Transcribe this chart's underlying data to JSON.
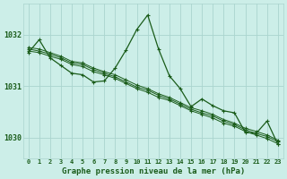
{
  "title": "Graphe pression niveau de la mer (hPa)",
  "bg_color": "#cceee8",
  "grid_color": "#aad4ce",
  "line_color": "#1a5c1a",
  "x_labels": [
    "0",
    "1",
    "2",
    "3",
    "4",
    "5",
    "6",
    "7",
    "8",
    "9",
    "10",
    "11",
    "12",
    "13",
    "14",
    "15",
    "16",
    "17",
    "18",
    "19",
    "20",
    "21",
    "22",
    "23"
  ],
  "ylim": [
    1029.6,
    1032.6
  ],
  "yticks": [
    1030,
    1031,
    1032
  ],
  "series_main": [
    1031.65,
    1031.9,
    1031.55,
    1031.4,
    1031.25,
    1031.22,
    1031.08,
    1031.1,
    1031.35,
    1031.7,
    1032.1,
    1032.38,
    1031.72,
    1031.2,
    1030.95,
    1030.6,
    1030.75,
    1030.62,
    1030.52,
    1030.48,
    1030.1,
    1030.08,
    1030.32,
    1029.87
  ],
  "series_lin1": [
    1031.68,
    1031.65,
    1031.58,
    1031.52,
    1031.42,
    1031.38,
    1031.28,
    1031.22,
    1031.15,
    1031.05,
    1030.95,
    1030.88,
    1030.78,
    1030.72,
    1030.62,
    1030.52,
    1030.45,
    1030.38,
    1030.28,
    1030.22,
    1030.12,
    1030.05,
    1029.98,
    1029.88
  ],
  "series_lin2": [
    1031.72,
    1031.68,
    1031.62,
    1031.55,
    1031.45,
    1031.42,
    1031.32,
    1031.25,
    1031.18,
    1031.08,
    1030.98,
    1030.92,
    1030.82,
    1030.75,
    1030.65,
    1030.55,
    1030.48,
    1030.42,
    1030.32,
    1030.25,
    1030.15,
    1030.08,
    1030.02,
    1029.92
  ],
  "series_lin3": [
    1031.75,
    1031.72,
    1031.65,
    1031.58,
    1031.48,
    1031.45,
    1031.35,
    1031.28,
    1031.22,
    1031.12,
    1031.02,
    1030.95,
    1030.85,
    1030.78,
    1030.68,
    1030.58,
    1030.52,
    1030.45,
    1030.35,
    1030.28,
    1030.18,
    1030.12,
    1030.05,
    1029.95
  ]
}
